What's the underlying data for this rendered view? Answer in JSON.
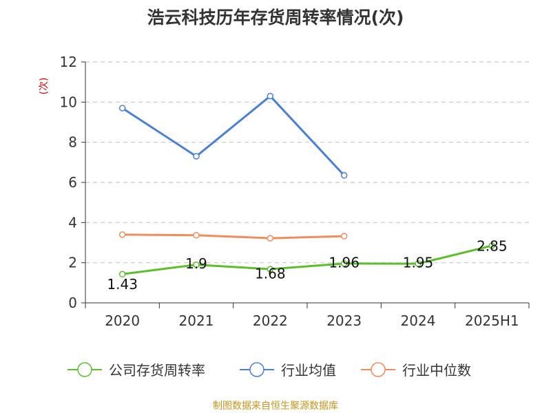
{
  "chart_data": {
    "type": "line",
    "title": "浩云科技历年存货周转率情况(次)",
    "ylabel": "(次)",
    "xlabel": "",
    "categories": [
      "2020",
      "2021",
      "2022",
      "2023",
      "2024",
      "2025H1"
    ],
    "ylim": [
      0,
      12
    ],
    "yticks": [
      0,
      2,
      4,
      6,
      8,
      10,
      12
    ],
    "grid": true,
    "legend_position": "bottom",
    "series": [
      {
        "name": "公司存货周转率",
        "color": "#5cbf2a",
        "values": [
          1.43,
          1.9,
          1.68,
          1.96,
          1.95,
          2.85
        ],
        "labels": [
          "1.43",
          "1.9",
          "1.68",
          "1.96",
          "1.95",
          "2.85"
        ]
      },
      {
        "name": "行业均值",
        "color": "#4a7fd6",
        "values": [
          9.7,
          7.3,
          10.3,
          6.35,
          null,
          null
        ]
      },
      {
        "name": "行业中位数",
        "color": "#f28c5a",
        "values": [
          3.4,
          3.37,
          3.22,
          3.32,
          null,
          null
        ]
      }
    ],
    "source": "制图数据来自恒生聚源数据库"
  }
}
